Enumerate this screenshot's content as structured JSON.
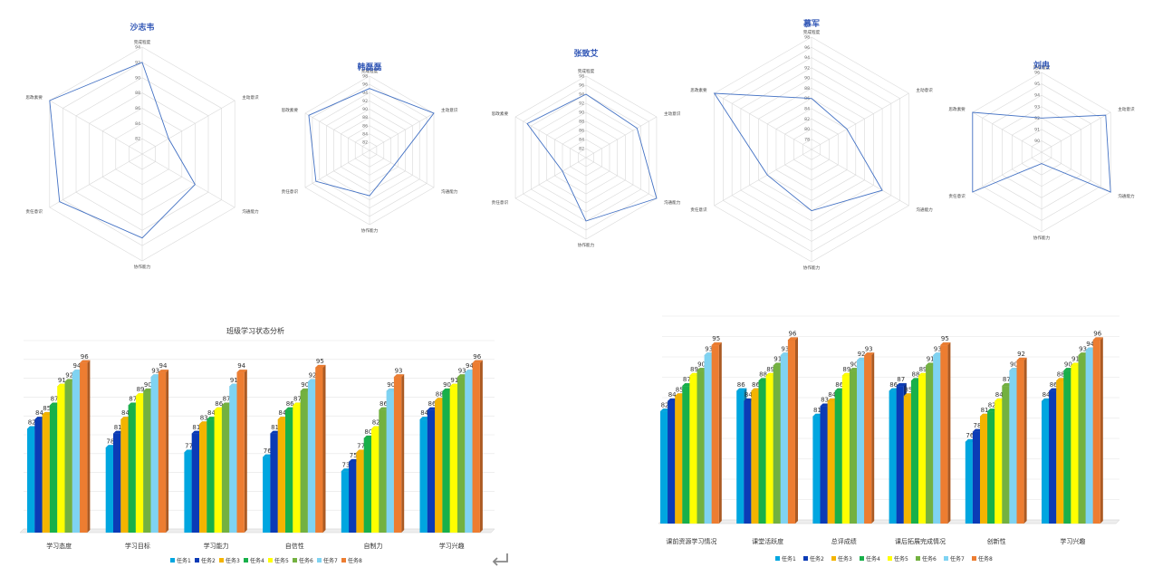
{
  "axes": [
    "完成程度",
    "主动意识",
    "沟通能力",
    "协作能力",
    "责任意识",
    "思政素要"
  ],
  "radars": [
    {
      "title": "沙志韦",
      "ticks": [
        82,
        84,
        86,
        88,
        90,
        92,
        94
      ],
      "min": 80,
      "max": 94,
      "values": [
        92,
        84,
        88,
        91,
        92.5,
        94
      ]
    },
    {
      "title": "韩磊磊",
      "ticks": [
        82,
        84,
        86,
        88,
        90,
        92,
        94,
        96,
        98
      ],
      "min": 80,
      "max": 98,
      "values": [
        95,
        98,
        87,
        91,
        95,
        97
      ]
    },
    {
      "title": "张致艾",
      "ticks": [
        82,
        84,
        86,
        88,
        90,
        92,
        94,
        96,
        98
      ],
      "min": 80,
      "max": 98,
      "values": [
        94,
        93,
        98,
        94,
        86,
        95
      ]
    },
    {
      "title": "慕军",
      "ticks": [
        78,
        80,
        82,
        84,
        86,
        88,
        90,
        92,
        94,
        96,
        98
      ],
      "min": 76,
      "max": 98,
      "values": [
        86,
        84,
        92,
        88,
        86,
        98
      ]
    },
    {
      "title": "刘冉",
      "ticks": [
        90,
        91,
        92,
        93,
        94,
        95,
        96
      ],
      "min": 89,
      "max": 96,
      "values": [
        92,
        95.5,
        96,
        90,
        96,
        96
      ]
    }
  ],
  "bar_charts": [
    {
      "title": "班级学习状态分析",
      "categories": [
        "学习态度",
        "学习目标",
        "学习能力",
        "自信性",
        "自制力",
        "学习兴趣"
      ],
      "values": [
        [
          82,
          84,
          85,
          87,
          91,
          92,
          94,
          96
        ],
        [
          78,
          81,
          84,
          87,
          89,
          90,
          93,
          94
        ],
        [
          77,
          81,
          83,
          84,
          86,
          87,
          91,
          94
        ],
        [
          76,
          81,
          84,
          86,
          87,
          90,
          92,
          95
        ],
        [
          73,
          75,
          77,
          80,
          82,
          86,
          90,
          93
        ],
        [
          84,
          86,
          88,
          90,
          91,
          93,
          94,
          96
        ]
      ]
    },
    {
      "title": "",
      "categories": [
        "课前资源学习情况",
        "课堂活跃度",
        "总评成绩",
        "课后拓展完成情况",
        "创新性",
        "学习兴趣"
      ],
      "values": [
        [
          82,
          84,
          85,
          87,
          89,
          90,
          93,
          95
        ],
        [
          86,
          84,
          86,
          88,
          89,
          91,
          93,
          96
        ],
        [
          81,
          83,
          84,
          86,
          89,
          90,
          92,
          93
        ],
        [
          86,
          87,
          85,
          88,
          89,
          91,
          93,
          95
        ],
        [
          76,
          78,
          81,
          82,
          84,
          87,
          90,
          92
        ],
        [
          84,
          86,
          88,
          90,
          91,
          93,
          94,
          96
        ]
      ]
    }
  ],
  "series": [
    "任务1",
    "任务2",
    "任务3",
    "任务4",
    "任务5",
    "任务6",
    "任务7",
    "任务8"
  ],
  "colors": [
    "#00a6e0",
    "#0b3bb6",
    "#f4b400",
    "#18b04a",
    "#ffff00",
    "#73b140",
    "#7fd3f2",
    "#ed7d31"
  ]
}
